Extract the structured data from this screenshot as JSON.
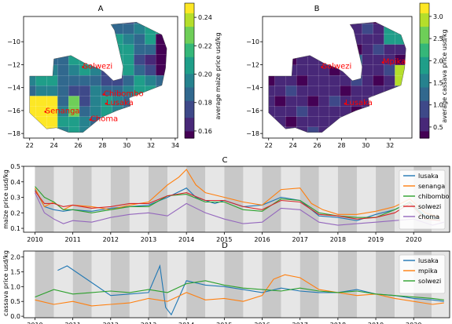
{
  "palette": {
    "viridis": [
      "#440154",
      "#482878",
      "#3e4989",
      "#31688e",
      "#26828e",
      "#1f9e89",
      "#35b779",
      "#6ece58",
      "#b5de2b",
      "#fde725"
    ],
    "series_colors": [
      "#1f77b4",
      "#ff7f0e",
      "#2ca02c",
      "#d62728",
      "#9467bd"
    ],
    "city_label_color": "#ff0000",
    "shade_dark": "#c8c8c8",
    "shade_light": "#e6e6e6"
  },
  "chart_data": [
    {
      "id": "A",
      "type": "heatmap",
      "title": "A",
      "xticks": [
        22,
        24,
        26,
        28,
        30,
        32,
        34
      ],
      "yticks": [
        -10,
        -12,
        -14,
        -16,
        -18
      ],
      "xlim": [
        21.5,
        34.2
      ],
      "ylim": [
        -18.4,
        -7.8
      ],
      "colorbar": {
        "label": "average maize price usd/kg",
        "ticks": [
          0.16,
          0.18,
          0.2,
          0.22,
          0.24
        ],
        "range": [
          0.155,
          0.25
        ]
      },
      "cities": [
        {
          "name": "Solwezi",
          "lon": 26.4,
          "lat": -12.2
        },
        {
          "name": "Chibombo",
          "lon": 28.1,
          "lat": -14.6
        },
        {
          "name": "Lusaka",
          "lon": 28.3,
          "lat": -15.4
        },
        {
          "name": "Senanga",
          "lon": 23.3,
          "lat": -16.1
        },
        {
          "name": "Choma",
          "lon": 27.0,
          "lat": -16.8
        }
      ]
    },
    {
      "id": "B",
      "type": "heatmap",
      "title": "B",
      "xticks": [
        22,
        24,
        26,
        28,
        30,
        32
      ],
      "yticks": [
        -10,
        -12,
        -14,
        -16,
        -18
      ],
      "xlim": [
        21.5,
        33.8
      ],
      "ylim": [
        -18.4,
        -7.8
      ],
      "colorbar": {
        "label": "average cassava price usd/kg",
        "ticks": [
          0.5,
          1.0,
          1.5,
          2.0,
          2.5,
          3.0
        ],
        "range": [
          0.25,
          3.3
        ]
      },
      "cities": [
        {
          "name": "Solwezi",
          "lon": 26.4,
          "lat": -12.2
        },
        {
          "name": "Mpika",
          "lon": 31.4,
          "lat": -11.8
        },
        {
          "name": "Lusaka",
          "lon": 28.3,
          "lat": -15.4
        }
      ]
    },
    {
      "id": "C",
      "type": "line",
      "title": "C",
      "ylabel": "maize price usd/kg",
      "xlim": [
        2009.7,
        2020.95
      ],
      "ylim": [
        0.075,
        0.5
      ],
      "yticks": [
        0.1,
        0.2,
        0.3,
        0.4,
        0.5
      ],
      "xticks": [
        2010,
        2011,
        2012,
        2013,
        2014,
        2015,
        2016,
        2017,
        2018,
        2019,
        2020
      ],
      "legend": "top-right",
      "series": [
        {
          "name": "lusaka",
          "x": [
            2010.0,
            2010.25,
            2010.5,
            2010.75,
            2011.0,
            2011.5,
            2012.0,
            2012.5,
            2013.0,
            2013.5,
            2014.0,
            2014.25,
            2014.5,
            2014.75,
            2015.0,
            2015.5,
            2016.0,
            2016.5,
            2017.0,
            2017.5,
            2018.0,
            2018.5,
            2019.0,
            2019.5,
            2019.9,
            2020.3,
            2020.7
          ],
          "y": [
            0.35,
            0.24,
            0.22,
            0.21,
            0.22,
            0.21,
            0.23,
            0.24,
            0.25,
            0.3,
            0.36,
            0.3,
            0.28,
            0.26,
            0.28,
            0.24,
            0.25,
            0.3,
            0.28,
            0.18,
            0.17,
            0.15,
            0.19,
            0.22,
            0.27,
            0.18,
            0.16
          ]
        },
        {
          "name": "senanga",
          "x": [
            2010.0,
            2010.25,
            2010.5,
            2010.75,
            2011.0,
            2011.5,
            2012.0,
            2012.5,
            2013.0,
            2013.5,
            2013.8,
            2014.0,
            2014.25,
            2014.5,
            2015.0,
            2015.5,
            2016.0,
            2016.5,
            2017.0,
            2017.3,
            2017.6,
            2018.0,
            2018.5,
            2019.0,
            2019.5,
            2019.9,
            2020.3,
            2020.7
          ],
          "y": [
            0.36,
            0.24,
            0.27,
            0.22,
            0.25,
            0.24,
            0.22,
            0.25,
            0.27,
            0.38,
            0.43,
            0.48,
            0.38,
            0.33,
            0.3,
            0.27,
            0.25,
            0.35,
            0.36,
            0.26,
            0.22,
            0.19,
            0.19,
            0.21,
            0.24,
            0.29,
            0.2,
            0.17
          ]
        },
        {
          "name": "chibombo",
          "x": [
            2010.0,
            2010.25,
            2010.5,
            2010.75,
            2011.0,
            2011.5,
            2012.0,
            2012.5,
            2013.0,
            2013.5,
            2014.0,
            2014.5,
            2015.0,
            2015.5,
            2016.0,
            2016.5,
            2017.0,
            2017.5,
            2018.0,
            2018.5,
            2019.0,
            2019.5,
            2019.9,
            2020.3,
            2020.7
          ],
          "y": [
            0.37,
            0.3,
            0.27,
            0.22,
            0.22,
            0.2,
            0.22,
            0.24,
            0.24,
            0.31,
            0.32,
            0.27,
            0.27,
            0.22,
            0.21,
            0.29,
            0.28,
            0.2,
            0.18,
            0.17,
            0.17,
            0.22,
            0.27,
            0.17,
            0.15
          ]
        },
        {
          "name": "solwezi",
          "x": [
            2010.0,
            2010.25,
            2010.5,
            2010.75,
            2011.0,
            2011.5,
            2012.0,
            2012.5,
            2013.0,
            2013.5,
            2014.0,
            2014.5,
            2015.0,
            2015.5,
            2016.0,
            2016.5,
            2017.0,
            2017.5,
            2018.0,
            2018.5,
            2019.0,
            2019.5,
            2019.9,
            2020.3,
            2020.7
          ],
          "y": [
            0.34,
            0.26,
            0.26,
            0.24,
            0.25,
            0.23,
            0.24,
            0.26,
            0.26,
            0.31,
            0.33,
            0.28,
            0.28,
            0.24,
            0.22,
            0.28,
            0.27,
            0.19,
            0.18,
            0.16,
            0.17,
            0.2,
            0.26,
            0.16,
            0.15
          ]
        },
        {
          "name": "choma",
          "x": [
            2010.0,
            2010.25,
            2010.5,
            2010.75,
            2011.0,
            2011.5,
            2012.0,
            2012.5,
            2013.0,
            2013.5,
            2014.0,
            2014.5,
            2015.0,
            2015.5,
            2016.0,
            2016.5,
            2017.0,
            2017.5,
            2018.0,
            2018.5,
            2019.0,
            2019.5,
            2020.0,
            2020.5,
            2020.8
          ],
          "y": [
            0.33,
            0.2,
            0.16,
            0.13,
            0.15,
            0.14,
            0.17,
            0.19,
            0.2,
            0.18,
            0.26,
            0.2,
            0.16,
            0.13,
            0.14,
            0.23,
            0.22,
            0.14,
            0.12,
            0.13,
            0.14,
            0.15,
            0.16,
            0.12,
            0.14
          ]
        }
      ]
    },
    {
      "id": "D",
      "type": "line",
      "title": "D",
      "ylabel": "cassava price usd/kg",
      "xlim": [
        2009.7,
        2020.95
      ],
      "ylim": [
        -0.05,
        2.2
      ],
      "yticks": [
        0.0,
        0.5,
        1.0,
        1.5,
        2.0
      ],
      "xticks": [
        2010,
        2011,
        2012,
        2013,
        2014,
        2015,
        2016,
        2017,
        2018,
        2019,
        2020
      ],
      "legend": "top-right",
      "series": [
        {
          "name": "lusaka",
          "x": [
            2010.6,
            2010.85,
            2012.0,
            2012.5,
            2013.0,
            2013.3,
            2013.45,
            2013.6,
            2014.0,
            2014.5,
            2015.0,
            2015.5,
            2016.0,
            2016.5,
            2017.0,
            2017.5,
            2018.0,
            2018.5,
            2019.0,
            2019.5,
            2020.0,
            2020.5,
            2020.8
          ],
          "y": [
            1.55,
            1.7,
            0.7,
            0.75,
            0.8,
            1.7,
            0.3,
            0.05,
            1.2,
            1.05,
            1.0,
            0.9,
            0.8,
            0.95,
            0.85,
            0.8,
            0.8,
            0.9,
            0.75,
            0.7,
            0.6,
            0.55,
            0.5
          ]
        },
        {
          "name": "mpika",
          "x": [
            2010.0,
            2010.5,
            2011.0,
            2011.5,
            2012.0,
            2012.5,
            2013.0,
            2013.5,
            2014.0,
            2014.5,
            2015.0,
            2015.5,
            2016.0,
            2016.3,
            2016.6,
            2017.0,
            2017.5,
            2018.0,
            2018.5,
            2019.0,
            2019.5,
            2020.0,
            2020.5,
            2020.8
          ],
          "y": [
            0.55,
            0.4,
            0.5,
            0.35,
            0.4,
            0.45,
            0.6,
            0.5,
            0.8,
            0.55,
            0.6,
            0.5,
            0.7,
            1.25,
            1.4,
            1.3,
            0.9,
            0.8,
            0.7,
            0.75,
            0.6,
            0.5,
            0.4,
            0.45
          ]
        },
        {
          "name": "solwezi",
          "x": [
            2010.0,
            2010.5,
            2011.0,
            2011.5,
            2012.0,
            2012.5,
            2013.0,
            2013.5,
            2014.0,
            2014.5,
            2015.0,
            2015.5,
            2016.0,
            2016.5,
            2017.0,
            2017.5,
            2018.0,
            2018.5,
            2019.0,
            2019.5,
            2020.0,
            2020.5,
            2020.8
          ],
          "y": [
            0.65,
            0.9,
            0.75,
            0.8,
            0.85,
            0.8,
            0.9,
            0.8,
            1.1,
            1.2,
            1.05,
            0.95,
            0.9,
            0.85,
            0.95,
            0.85,
            0.8,
            0.85,
            0.75,
            0.7,
            0.65,
            0.6,
            0.55
          ]
        }
      ]
    }
  ]
}
